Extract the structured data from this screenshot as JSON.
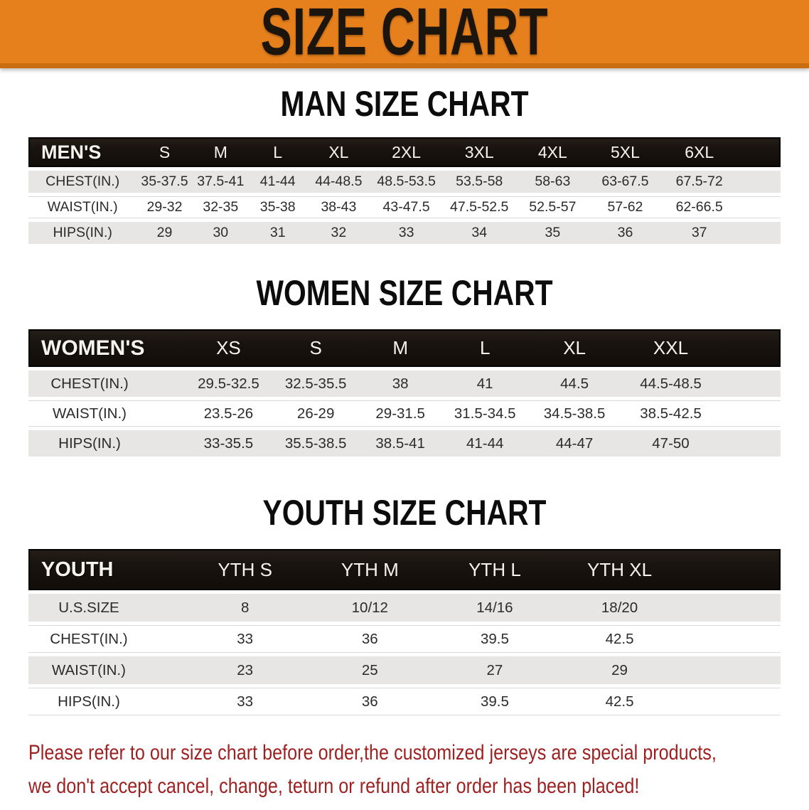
{
  "banner": {
    "title": "SIZE CHART"
  },
  "colors": {
    "banner_orange": "#e5801c",
    "banner_edge": "#c96c12",
    "bar_black": "#18130f",
    "bar_text": "#f6f3ee",
    "stripe_gray": "#e7e6e5",
    "body_text": "#2b2b2b",
    "footnote_red": "#9e2121"
  },
  "sections": [
    {
      "heading": "MAN SIZE CHART",
      "table": {
        "group_label": "MEN'S",
        "header": [
          "MEN'S",
          "S",
          "M",
          "L",
          "XL",
          "2XL",
          "3XL",
          "4XL",
          "5XL",
          "6XL"
        ],
        "rows": [
          [
            "CHEST(IN.)",
            "35-37.5",
            "37.5-41",
            "41-44",
            "44-48.5",
            "48.5-53.5",
            "53.5-58",
            "58-63",
            "63-67.5",
            "67.5-72"
          ],
          [
            "WAIST(IN.)",
            "29-32",
            "32-35",
            "35-38",
            "38-43",
            "43-47.5",
            "47.5-52.5",
            "52.5-57",
            "57-62",
            "62-66.5"
          ],
          [
            "HIPS(IN.)",
            "29",
            "30",
            "31",
            "32",
            "33",
            "34",
            "35",
            "36",
            "37"
          ]
        ]
      }
    },
    {
      "heading": "WOMEN SIZE CHART",
      "table": {
        "group_label": "WOMEN'S",
        "header": [
          "WOMEN'S",
          "XS",
          "S",
          "M",
          "L",
          "XL",
          "XXL"
        ],
        "rows": [
          [
            "CHEST(IN.)",
            "29.5-32.5",
            "32.5-35.5",
            "38",
            "41",
            "44.5",
            "44.5-48.5"
          ],
          [
            "WAIST(IN.)",
            "23.5-26",
            "26-29",
            "29-31.5",
            "31.5-34.5",
            "34.5-38.5",
            "38.5-42.5"
          ],
          [
            "HIPS(IN.)",
            "33-35.5",
            "35.5-38.5",
            "38.5-41",
            "41-44",
            "44-47",
            "47-50"
          ]
        ]
      }
    },
    {
      "heading": "YOUTH SIZE CHART",
      "table": {
        "group_label": "YOUTH",
        "header": [
          "YOUTH",
          "YTH S",
          "YTH M",
          "YTH L",
          "YTH XL"
        ],
        "rows": [
          [
            "U.S.SIZE",
            "8",
            "10/12",
            "14/16",
            "18/20"
          ],
          [
            "CHEST(IN.)",
            "33",
            "36",
            "39.5",
            "42.5"
          ],
          [
            "WAIST(IN.)",
            "23",
            "25",
            "27",
            "29"
          ],
          [
            "HIPS(IN.)",
            "33",
            "36",
            "39.5",
            "42.5"
          ]
        ]
      }
    }
  ],
  "footnote": {
    "line1": "Please refer to our size chart before order,the customized jerseys are special products,",
    "line2": "we don't accept cancel, change, teturn or refund after order has been placed!"
  }
}
